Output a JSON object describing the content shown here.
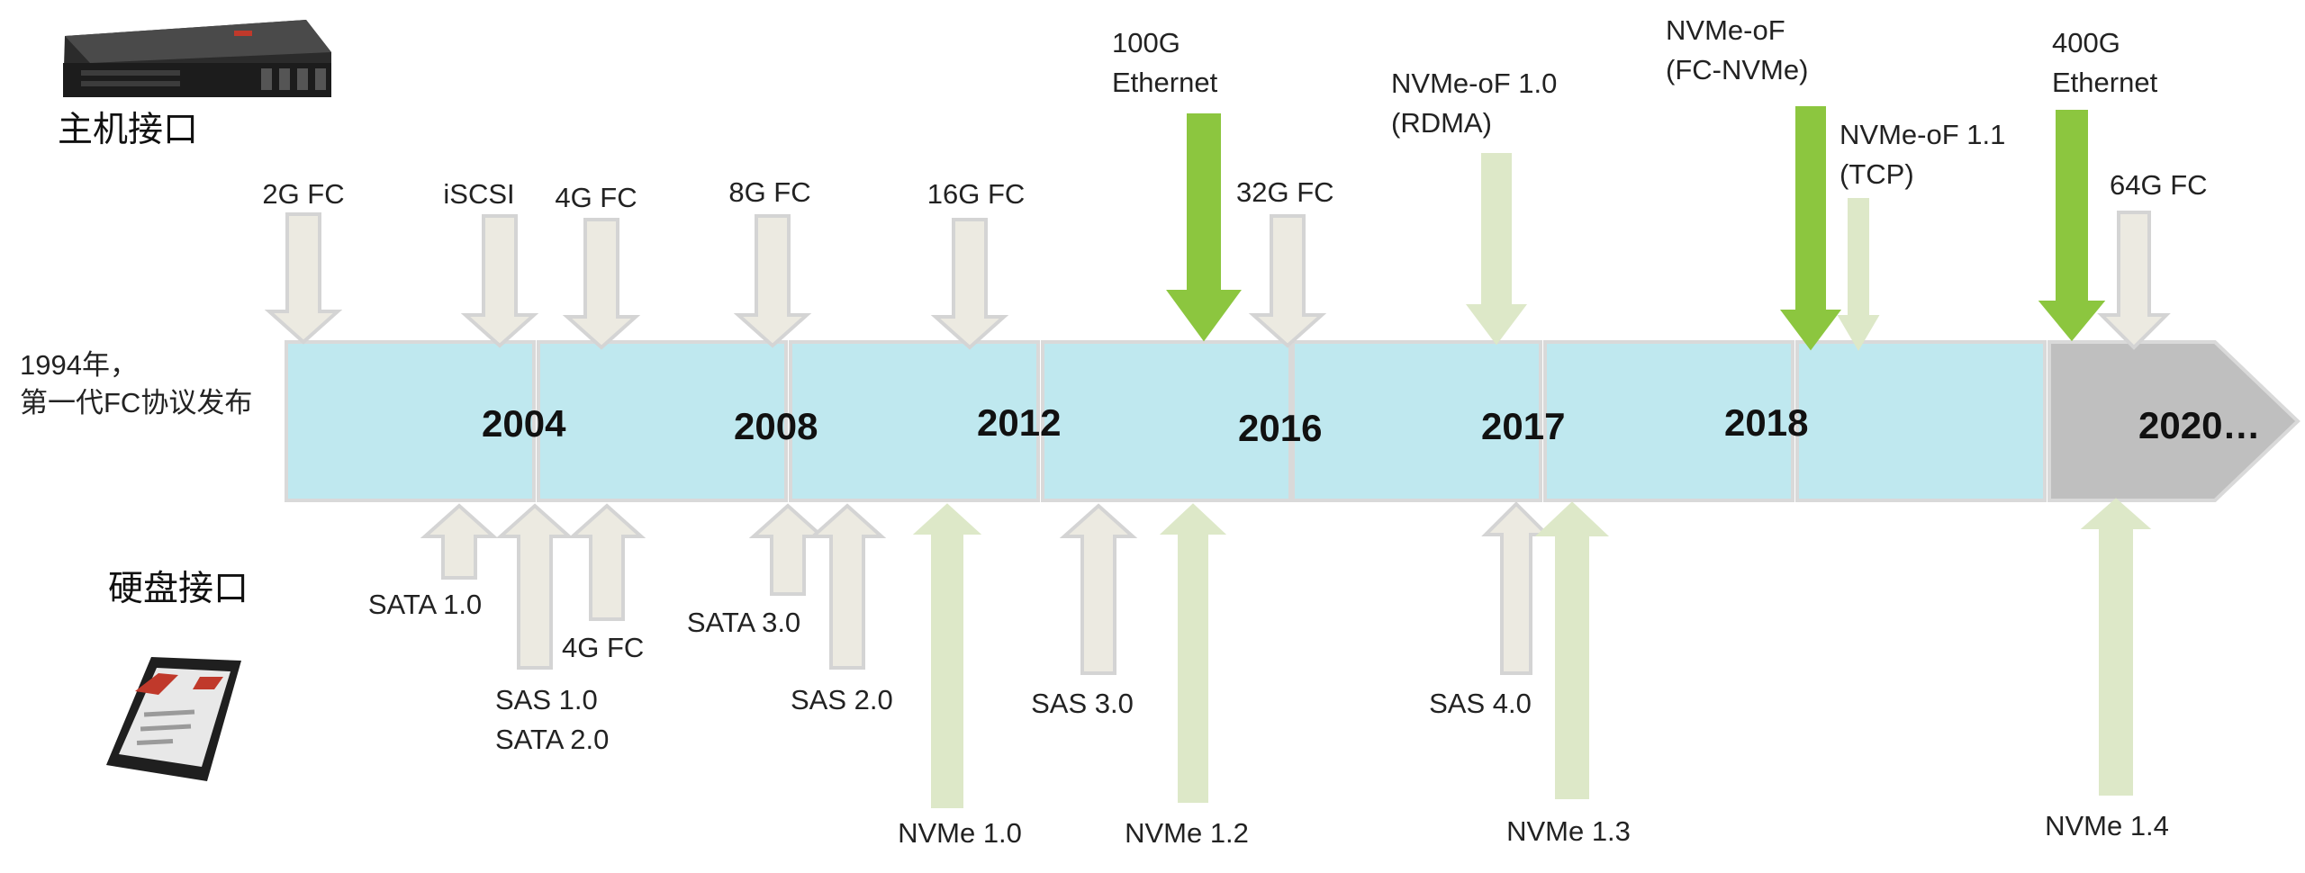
{
  "colors": {
    "segment_fill": "#bfe8ef",
    "segment_stroke": "#d9d9d9",
    "future_fill": "#bfbfbf",
    "arrow_gray": "#eceae1",
    "arrow_gray_stroke": "#d4d4d4",
    "arrow_green": "#8cc63f",
    "arrow_light_green": "#dde8c8"
  },
  "icons": {
    "host": "rack-server-icon",
    "disk": "ssd-drive-icon"
  },
  "headings": {
    "host": "主机接口",
    "disk": "硬盘接口"
  },
  "origin": {
    "line1": "1994年，",
    "line2": "第一代FC协议发布"
  },
  "timeline": {
    "years": [
      "2004",
      "2008",
      "2012",
      "2016",
      "2017",
      "2018",
      "",
      "2020…"
    ]
  },
  "host_interfaces": [
    {
      "lines": [
        "2G FC"
      ],
      "color": "gray"
    },
    {
      "lines": [
        "iSCSI"
      ],
      "color": "gray"
    },
    {
      "lines": [
        "4G FC"
      ],
      "color": "gray"
    },
    {
      "lines": [
        "8G FC"
      ],
      "color": "gray"
    },
    {
      "lines": [
        "16G FC"
      ],
      "color": "gray"
    },
    {
      "lines": [
        "100G",
        "Ethernet"
      ],
      "color": "green"
    },
    {
      "lines": [
        "32G FC"
      ],
      "color": "gray"
    },
    {
      "lines": [
        "NVMe-oF 1.0",
        "(RDMA)"
      ],
      "color": "lightgreen"
    },
    {
      "lines": [
        "NVMe-oF",
        " (FC-NVMe)"
      ],
      "color": "green"
    },
    {
      "lines": [
        "NVMe-oF 1.1",
        "(TCP)"
      ],
      "color": "lightgreen"
    },
    {
      "lines": [
        "400G",
        "Ethernet"
      ],
      "color": "green"
    },
    {
      "lines": [
        "64G FC"
      ],
      "color": "gray"
    }
  ],
  "disk_interfaces": [
    {
      "lines": [
        "SATA 1.0"
      ],
      "color": "gray"
    },
    {
      "lines": [
        "SAS 1.0",
        "SATA 2.0"
      ],
      "color": "gray"
    },
    {
      "lines": [
        "4G FC"
      ],
      "color": "gray"
    },
    {
      "lines": [
        "SATA 3.0"
      ],
      "color": "gray"
    },
    {
      "lines": [
        "SAS 2.0"
      ],
      "color": "gray"
    },
    {
      "lines": [
        "NVMe 1.0"
      ],
      "color": "lightgreen"
    },
    {
      "lines": [
        "SAS 3.0"
      ],
      "color": "gray"
    },
    {
      "lines": [
        "NVMe 1.2"
      ],
      "color": "lightgreen"
    },
    {
      "lines": [
        "SAS 4.0"
      ],
      "color": "gray"
    },
    {
      "lines": [
        "NVMe 1.3"
      ],
      "color": "lightgreen"
    },
    {
      "lines": [
        "NVMe 1.4"
      ],
      "color": "lightgreen"
    }
  ]
}
